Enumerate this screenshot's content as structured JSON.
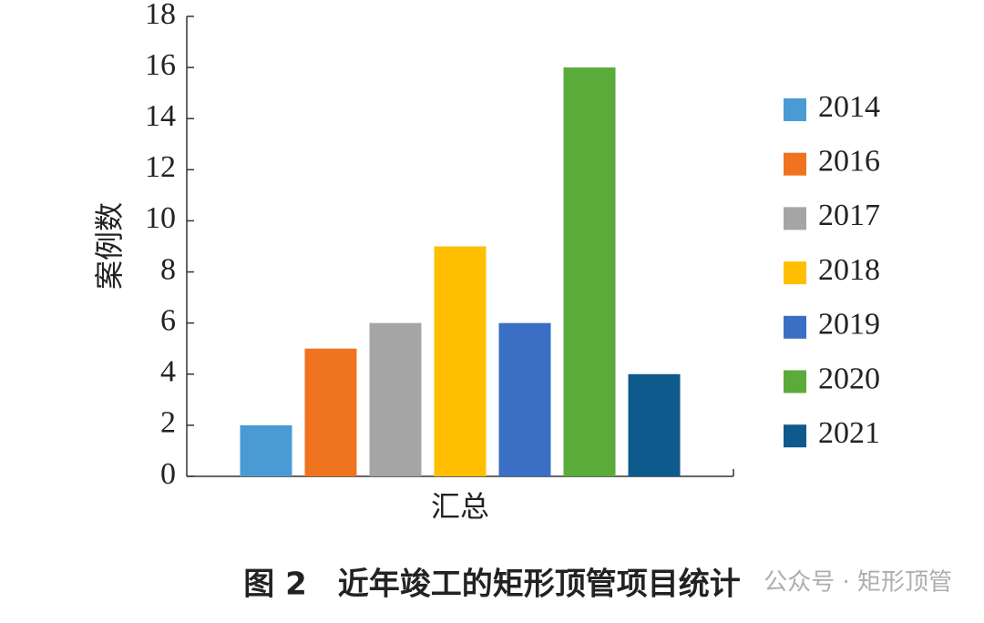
{
  "chart_data": {
    "type": "bar",
    "y_label": "案例数",
    "categories": [
      "汇总"
    ],
    "series": [
      {
        "name": "2014",
        "color": "#4a9bd4",
        "values": [
          2
        ]
      },
      {
        "name": "2016",
        "color": "#f07320",
        "values": [
          5
        ]
      },
      {
        "name": "2017",
        "color": "#a5a5a5",
        "values": [
          6
        ]
      },
      {
        "name": "2018",
        "color": "#ffbf00",
        "values": [
          9
        ]
      },
      {
        "name": "2019",
        "color": "#3a6fc4",
        "values": [
          6
        ]
      },
      {
        "name": "2020",
        "color": "#5aab3a",
        "values": [
          16
        ]
      },
      {
        "name": "2021",
        "color": "#0f5a8c",
        "values": [
          4
        ]
      }
    ],
    "ylim": [
      0,
      18
    ],
    "yticks": [
      0,
      2,
      4,
      6,
      8,
      10,
      12,
      14,
      16,
      18
    ],
    "grid": false,
    "legend": "right",
    "caption": "图 2　近年竣工的矩形顶管项目统计",
    "watermark": "公众号 · 矩形顶管"
  }
}
